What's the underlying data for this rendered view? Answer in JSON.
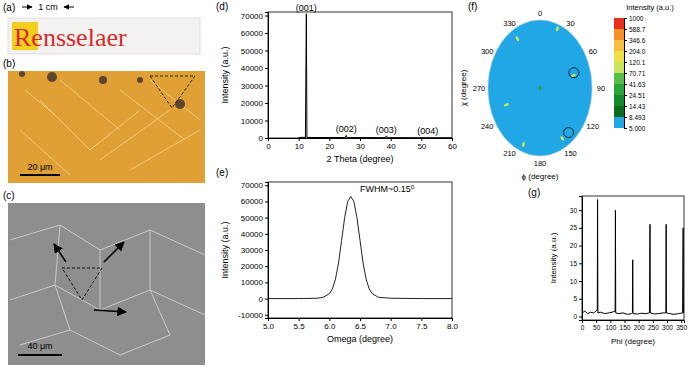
{
  "chart_data": [
    {
      "type": "line",
      "title": "(d)",
      "x_label": "2 Theta (degree)",
      "y_label": "Intensity (a.u.)",
      "color": "#000000",
      "x": [
        10,
        12.2,
        12.5,
        12.7,
        13,
        25.2,
        25.5,
        25.8,
        38.3,
        38.6,
        38.9,
        51.8,
        52.1,
        52.4,
        60
      ],
      "values": [
        300,
        400,
        71000,
        400,
        300,
        250,
        1500,
        250,
        200,
        1200,
        200,
        150,
        500,
        150,
        150
      ],
      "xlim": [
        0,
        60
      ],
      "xticks": [
        0,
        10,
        20,
        30,
        40,
        50,
        60
      ],
      "ylim": [
        0,
        72000
      ],
      "yticks": [
        0,
        10000,
        20000,
        30000,
        40000,
        50000,
        60000,
        70000
      ],
      "annotations": [
        {
          "text": "(001)",
          "x": 12.5,
          "y": 71000
        },
        {
          "text": "(002)",
          "x": 25.5,
          "y": 1500
        },
        {
          "text": "(003)",
          "x": 38.6,
          "y": 1200
        },
        {
          "text": "(004)",
          "x": 52.1,
          "y": 500
        }
      ]
    },
    {
      "type": "line",
      "title": "(e)",
      "x_label": "Omega (degree)",
      "y_label": "Intensity (a.u.)",
      "color": "#222222",
      "x": [
        5.0,
        5.5,
        5.8,
        5.9,
        6.0,
        6.05,
        6.1,
        6.15,
        6.2,
        6.25,
        6.3,
        6.35,
        6.4,
        6.45,
        6.5,
        6.55,
        6.6,
        6.65,
        6.7,
        6.8,
        7.0,
        7.5,
        8.0
      ],
      "values": [
        0,
        0,
        200,
        800,
        3000,
        6000,
        12000,
        22000,
        36000,
        50000,
        60000,
        63000,
        60000,
        50000,
        36000,
        22000,
        12000,
        6000,
        3000,
        800,
        200,
        0,
        0
      ],
      "xlim": [
        5,
        8
      ],
      "xticks": [
        {
          "value": 5,
          "label": "5.0"
        },
        5.5,
        {
          "value": 6,
          "label": "6.0"
        },
        6.5,
        {
          "value": 7,
          "label": "7.0"
        },
        7.5,
        {
          "value": 8,
          "label": "8.0"
        }
      ],
      "ylim": [
        -12000,
        72000
      ],
      "yticks": [
        -10000,
        0,
        10000,
        20000,
        30000,
        40000,
        50000,
        60000,
        70000
      ],
      "annotations": [
        {
          "text": "FWHM~0.15⁰",
          "x": 6.5,
          "y": 64000
        }
      ]
    },
    {
      "type": "pole_figure",
      "title": "(f)",
      "x_label": "ϕ (degree)",
      "y_label": "χ (degree)",
      "xlim": [
        0,
        360
      ],
      "xticks": [
        0,
        30,
        60,
        90,
        120,
        150,
        180,
        210,
        240,
        270,
        300,
        330
      ],
      "ylim": [
        0,
        90
      ],
      "spots": {
        "phi": [
          21,
          74,
          150,
          201,
          249,
          329,
          0
        ],
        "chi": [
          84,
          60,
          77,
          80,
          62,
          76,
          0
        ],
        "intensity": [
          90,
          90,
          90,
          90,
          90,
          90,
          30
        ]
      },
      "circles": {
        "phi": [
          71,
          140
        ],
        "chi": [
          62,
          77
        ]
      },
      "colorbar": {
        "title": "Intensity (a.u.)",
        "range": [
          5,
          1000
        ],
        "log": true,
        "ticks": [
          {
            "value": 5,
            "label": "5.000"
          },
          8.493,
          14.43,
          24.51,
          41.63,
          70.71,
          120.1,
          {
            "value": 204,
            "label": "204.0"
          },
          346.6,
          588.7,
          1000
        ],
        "colors": [
          "#22a7e6",
          "#0b6b1f",
          "#138a2a",
          "#2aa33a",
          "#58c04a",
          "#c8e45a",
          "#f0e04a",
          "#f5c040",
          "#f5902c",
          "#e8301c"
        ]
      }
    },
    {
      "type": "line",
      "title": "(g)",
      "x_label": "Phi (degree)",
      "y_label": "Intensity (a.u.)",
      "color": "#000000",
      "x": [
        0,
        10,
        20,
        30,
        40,
        50,
        54,
        55,
        56,
        65,
        80,
        95,
        110,
        117,
        118,
        119,
        130,
        145,
        160,
        175,
        178,
        179,
        180,
        195,
        210,
        225,
        238,
        240,
        241,
        255,
        270,
        285,
        296,
        297,
        298,
        310,
        325,
        340,
        355,
        357,
        358,
        360
      ],
      "values": [
        1,
        1.5,
        0.8,
        1.2,
        1,
        1.5,
        2,
        33,
        1,
        1.2,
        0.8,
        1,
        1.3,
        1.5,
        30,
        1,
        0.8,
        1,
        0.6,
        0.8,
        1,
        16,
        0.8,
        0.7,
        0.9,
        0.8,
        1,
        26,
        1,
        0.7,
        0.8,
        1,
        1,
        26,
        1,
        0.8,
        0.6,
        0.8,
        1,
        25,
        1,
        0.8
      ],
      "xlim": [
        0,
        360
      ],
      "xticks": [
        0,
        50,
        100,
        150,
        200,
        250,
        300,
        350
      ],
      "ylim": [
        -1,
        34
      ],
      "yticks": [
        0,
        5,
        10,
        15,
        20,
        25,
        30
      ]
    }
  ],
  "images": [
    {
      "label": "(a)",
      "scale_bar": "1 cm",
      "text": "Rensselaer"
    },
    {
      "label": "(b)",
      "scale_bar": "20 μm"
    },
    {
      "label": "(c)",
      "scale_bar": "40 μm"
    }
  ]
}
